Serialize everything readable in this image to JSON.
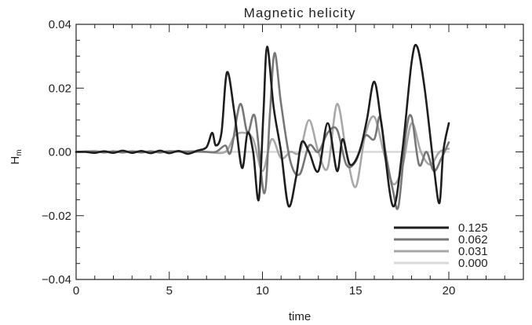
{
  "chart_data": {
    "type": "line",
    "title": "Magnetic helicity",
    "xlabel": "time",
    "ylabel": "H",
    "ylabel_subscript": "m",
    "xlim": [
      0,
      24
    ],
    "ylim": [
      -0.04,
      0.04
    ],
    "xticks": [
      0,
      5,
      10,
      15,
      20
    ],
    "xtick_labels": [
      "0",
      "5",
      "10",
      "15",
      "20"
    ],
    "yticks": [
      -0.04,
      -0.02,
      0.0,
      0.02,
      0.04
    ],
    "ytick_labels": [
      "−0.04",
      "−0.02",
      "0.00",
      "0.02",
      "0.04"
    ],
    "grid": false,
    "legend_position": "bottom-right",
    "series": [
      {
        "name": "0.125",
        "color": "#1e1e1e",
        "points": [
          [
            0,
            0
          ],
          [
            0.5,
            0
          ],
          [
            1,
            -0.0003
          ],
          [
            1.5,
            0.0002
          ],
          [
            2,
            -0.0003
          ],
          [
            2.5,
            0.0004
          ],
          [
            3,
            -0.0003
          ],
          [
            3.5,
            0.0003
          ],
          [
            4,
            -0.0004
          ],
          [
            4.5,
            0.0004
          ],
          [
            5,
            -0.0004
          ],
          [
            5.5,
            0.0003
          ],
          [
            6,
            -0.0006
          ],
          [
            6.5,
            0.0004
          ],
          [
            7,
            0.0015
          ],
          [
            7.3,
            0.006
          ],
          [
            7.5,
            0.002
          ],
          [
            7.8,
            0.006
          ],
          [
            8.1,
            0.025
          ],
          [
            8.5,
            0.012
          ],
          [
            8.9,
            -0.005
          ],
          [
            9.2,
            0.006
          ],
          [
            9.5,
            0.0
          ],
          [
            9.8,
            -0.015
          ],
          [
            10.05,
            0.012
          ],
          [
            10.25,
            0.033
          ],
          [
            10.6,
            0.014
          ],
          [
            11,
            0.0
          ],
          [
            11.4,
            -0.017
          ],
          [
            11.8,
            -0.008
          ],
          [
            12.1,
            0.003
          ],
          [
            12.5,
            0.0
          ],
          [
            13,
            -0.006
          ],
          [
            13.5,
            0.009
          ],
          [
            14,
            -0.006
          ],
          [
            14.3,
            0.004
          ],
          [
            14.7,
            -0.004
          ],
          [
            15.2,
            0.0
          ],
          [
            15.6,
            0.01
          ],
          [
            16,
            0.022
          ],
          [
            16.4,
            0.008
          ],
          [
            17,
            -0.017
          ],
          [
            17.5,
            0.0
          ],
          [
            18,
            0.028
          ],
          [
            18.3,
            0.033
          ],
          [
            18.7,
            0.02
          ],
          [
            19.2,
            -0.005
          ],
          [
            19.5,
            -0.016
          ],
          [
            19.7,
            0.0
          ],
          [
            20,
            0.009
          ]
        ]
      },
      {
        "name": "0.062",
        "color": "#777777",
        "points": [
          [
            0,
            0
          ],
          [
            1,
            0.0002
          ],
          [
            1.5,
            -0.0002
          ],
          [
            2,
            0.0002
          ],
          [
            2.5,
            -0.0002
          ],
          [
            3,
            0.0002
          ],
          [
            3.5,
            -0.0002
          ],
          [
            4,
            0.0002
          ],
          [
            4.5,
            -0.0002
          ],
          [
            5,
            0.0002
          ],
          [
            6,
            0.0001
          ],
          [
            6.5,
            0.0002
          ],
          [
            7,
            0.0
          ],
          [
            7.5,
            0.0
          ],
          [
            8,
            0.002
          ],
          [
            8.3,
            0.0
          ],
          [
            8.8,
            0.015
          ],
          [
            9.2,
            0.006
          ],
          [
            9.6,
            0.011
          ],
          [
            10.1,
            -0.013
          ],
          [
            10.4,
            0.012
          ],
          [
            10.65,
            0.031
          ],
          [
            11,
            0.015
          ],
          [
            11.5,
            -0.003
          ],
          [
            12,
            -0.007
          ],
          [
            12.5,
            0.002
          ],
          [
            13,
            0.0
          ],
          [
            13.5,
            0.006
          ],
          [
            14,
            0.007
          ],
          [
            14.5,
            -0.004
          ],
          [
            15,
            -0.003
          ],
          [
            15.5,
            0.005
          ],
          [
            16,
            0.004
          ],
          [
            16.3,
            0.011
          ],
          [
            16.6,
            0.0
          ],
          [
            17,
            -0.012
          ],
          [
            17.3,
            -0.017
          ],
          [
            17.7,
            0.006
          ],
          [
            18,
            0.011
          ],
          [
            18.4,
            -0.004
          ],
          [
            18.8,
            0.0
          ],
          [
            19.2,
            -0.006
          ],
          [
            19.6,
            -0.002
          ],
          [
            20,
            0.003
          ]
        ]
      },
      {
        "name": "0.031",
        "color": "#a8a8a8",
        "points": [
          [
            0,
            0
          ],
          [
            1,
            0.0001
          ],
          [
            2,
            -0.0001
          ],
          [
            3,
            0.0001
          ],
          [
            4,
            -0.0001
          ],
          [
            5,
            0.0001
          ],
          [
            6,
            0.0
          ],
          [
            7,
            0.0
          ],
          [
            8,
            0.0
          ],
          [
            8.5,
            0.005
          ],
          [
            9,
            0.006
          ],
          [
            9.5,
            0.004
          ],
          [
            10,
            -0.006
          ],
          [
            10.5,
            0.004
          ],
          [
            11,
            -0.002
          ],
          [
            11.5,
            0.0
          ],
          [
            12,
            0.0
          ],
          [
            12.5,
            0.01
          ],
          [
            13,
            0.0
          ],
          [
            13.5,
            -0.005
          ],
          [
            14,
            0.015
          ],
          [
            14.5,
            0.0
          ],
          [
            15,
            -0.011
          ],
          [
            15.5,
            0.005
          ],
          [
            16,
            0.011
          ],
          [
            16.5,
            0.0
          ],
          [
            17,
            -0.01
          ],
          [
            17.5,
            -0.005
          ],
          [
            18,
            0.009
          ],
          [
            18.5,
            0.0
          ],
          [
            19,
            -0.004
          ],
          [
            19.5,
            0.0
          ],
          [
            20,
            0.001
          ]
        ]
      },
      {
        "name": "0.000",
        "color": "#d8d8d8",
        "points": [
          [
            0,
            0
          ],
          [
            3,
            0.0002
          ],
          [
            5,
            0.0
          ],
          [
            6,
            0.0002
          ],
          [
            7,
            0.0
          ],
          [
            8,
            0.0
          ],
          [
            10,
            0.0
          ],
          [
            12,
            0.0
          ],
          [
            14,
            0.0
          ],
          [
            16,
            0.0
          ],
          [
            18,
            0.0
          ],
          [
            20,
            0.0
          ]
        ]
      }
    ]
  }
}
